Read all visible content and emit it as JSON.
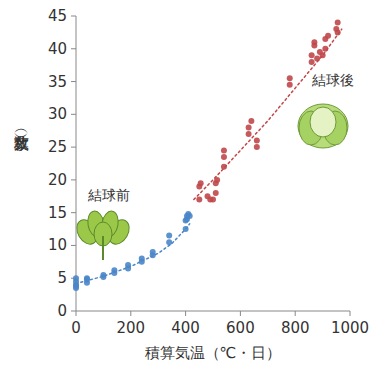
{
  "chart_data": {
    "type": "scatter",
    "xlabel": "積算気温（℃・日）",
    "ylabel": "葉数（枚）",
    "xlim": [
      0,
      1000
    ],
    "xticks": [
      0,
      200,
      400,
      600,
      800,
      1000
    ],
    "ylim": [
      0,
      45
    ],
    "yticks": [
      0,
      5,
      10,
      15,
      20,
      25,
      30,
      35,
      40,
      45
    ],
    "grid": false,
    "series": [
      {
        "name": "結球前",
        "type": "scatter",
        "marker": "circle",
        "color": "#4a86c8",
        "x": [
          0,
          0,
          0,
          0,
          0,
          40,
          40,
          40,
          100,
          100,
          140,
          140,
          190,
          190,
          240,
          240,
          280,
          280,
          340,
          340,
          400,
          400,
          405,
          405,
          410,
          415
        ],
        "values": [
          3.5,
          3.8,
          4,
          4.5,
          5,
          4.3,
          4.8,
          5,
          5.2,
          5.5,
          5.8,
          6.2,
          6.5,
          7,
          7.5,
          8,
          8.5,
          9,
          10.5,
          11.5,
          12.5,
          13.8,
          14,
          14.5,
          14.8,
          14.5
        ]
      },
      {
        "name": "結球後",
        "type": "scatter",
        "marker": "circle",
        "color": "#c0474a",
        "x": [
          450,
          450,
          455,
          480,
          490,
          500,
          510,
          510,
          515,
          540,
          540,
          540,
          630,
          630,
          640,
          660,
          660,
          780,
          780,
          860,
          860,
          870,
          870,
          880,
          890,
          900,
          910,
          910,
          920,
          950,
          955,
          955
        ],
        "values": [
          17,
          19,
          19.5,
          17.5,
          17,
          17,
          18,
          19.5,
          20,
          22,
          23.5,
          24.5,
          27,
          28,
          29,
          26,
          25,
          34.5,
          35.5,
          38,
          39,
          40.5,
          41,
          38.5,
          39.5,
          39,
          40,
          41.5,
          42,
          43,
          44,
          42.5
        ]
      },
      {
        "type": "line",
        "line_style": "dotted",
        "color": "#4a86c8",
        "x": [
          0,
          100,
          200,
          300,
          350,
          400,
          415
        ],
        "values": [
          4.2,
          5.3,
          6.8,
          8.8,
          10.3,
          12.5,
          13.3
        ]
      },
      {
        "type": "line",
        "line_style": "dotted",
        "color": "#c0474a",
        "x": [
          430,
          500,
          600,
          700,
          800,
          900,
          970
        ],
        "values": [
          17,
          20,
          24.5,
          29,
          34,
          39,
          43
        ]
      }
    ]
  }
}
